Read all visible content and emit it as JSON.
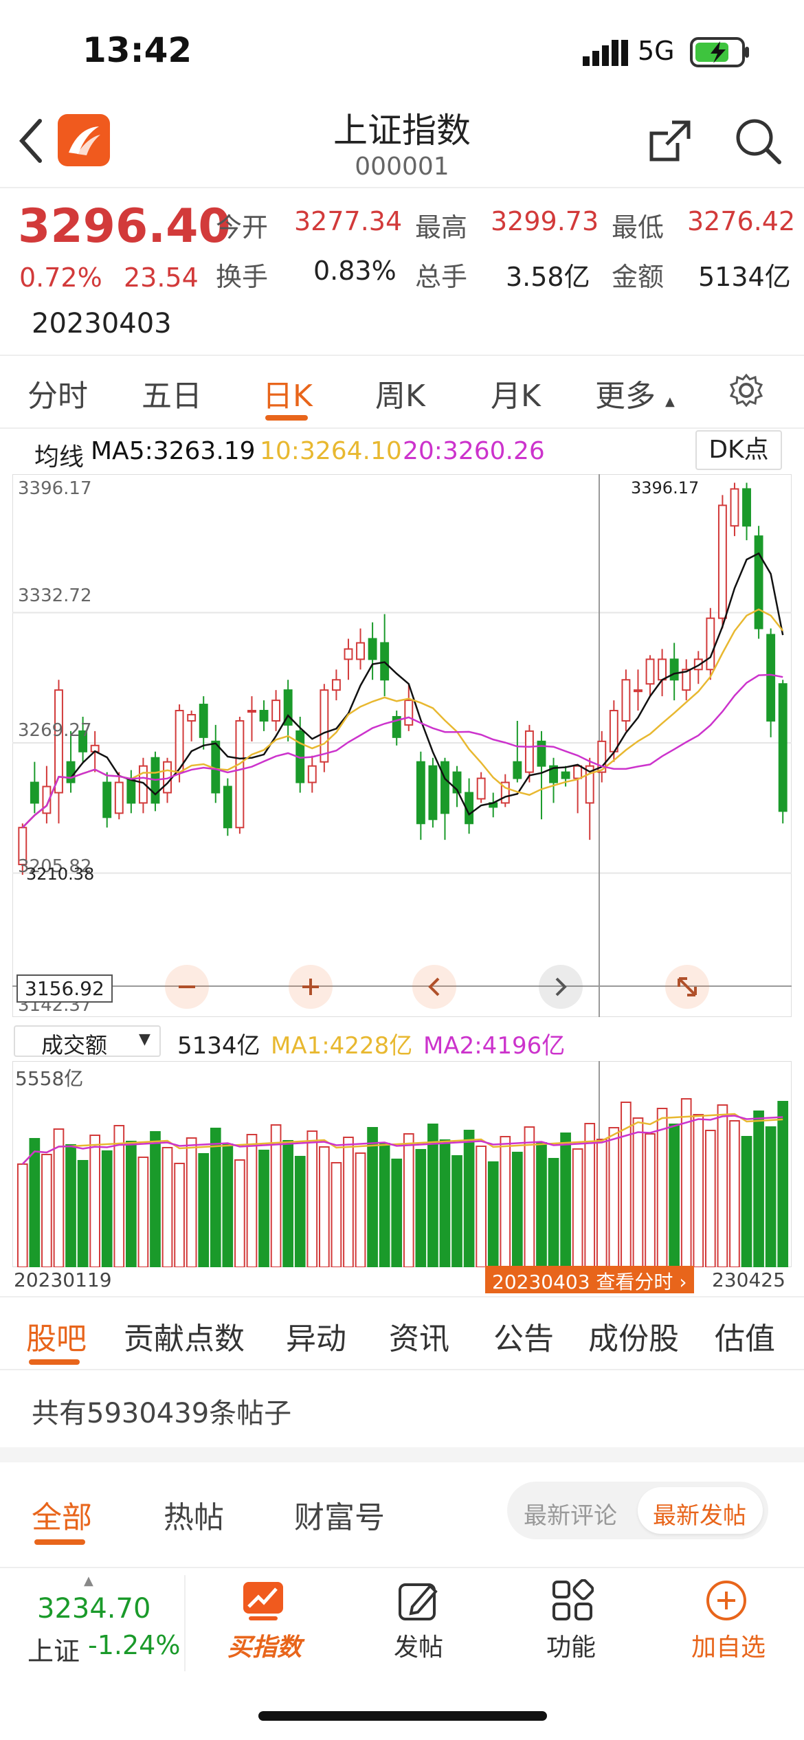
{
  "status": {
    "time": "13:42",
    "network": "5G"
  },
  "header": {
    "title": "上证指数",
    "code": "000001"
  },
  "quote": {
    "price": "3296.40",
    "change_pct": "0.72%",
    "change": "23.54",
    "date": "20230403",
    "open_label": "今开",
    "open": "3277.34",
    "high_label": "最高",
    "high": "3299.73",
    "low_label": "最低",
    "low": "3276.42",
    "turnover_label": "换手",
    "turnover": "0.83%",
    "volume_label": "总手",
    "volume": "3.58亿",
    "amount_label": "金额",
    "amount": "5134亿"
  },
  "period_tabs": [
    "分时",
    "五日",
    "日K",
    "周K",
    "月K",
    "更多"
  ],
  "active_period": "日K",
  "ma": {
    "label": "均线",
    "ma5": "MA5:3263.19",
    "ma10": "10:3264.10",
    "ma20": "20:3260.26",
    "dk_button": "DK点",
    "colors": {
      "ma5": "#111111",
      "ma10": "#e8b830",
      "ma20": "#cc33cc"
    }
  },
  "price_axis": {
    "top": "3396.17",
    "l2": "3332.72",
    "l3": "3269.27",
    "l4": "3205.82",
    "bottom": "3142.37",
    "crosshair_value": "3156.92",
    "max_marker": "3396.17",
    "min_marker": "3210.38"
  },
  "volume": {
    "selector": "成交额",
    "value": "5134亿",
    "ma1": "MA1:4228亿",
    "ma2": "MA2:4196亿",
    "top_label": "5558亿",
    "start_date": "20230119",
    "end_date": "230425",
    "crosshair_label": "20230403 查看分时"
  },
  "chart_data": {
    "type": "candlestick",
    "ylim": [
      3142.37,
      3396.17
    ],
    "candles": [
      [
        3210,
        3228,
        3205,
        3230
      ],
      [
        3250,
        3240,
        3235,
        3260
      ],
      [
        3235,
        3248,
        3230,
        3258
      ],
      [
        3245,
        3295,
        3230,
        3300
      ],
      [
        3260,
        3250,
        3245,
        3275
      ],
      [
        3275,
        3265,
        3260,
        3282
      ],
      [
        3265,
        3268,
        3255,
        3275
      ],
      [
        3250,
        3233,
        3228,
        3255
      ],
      [
        3235,
        3250,
        3232,
        3255
      ],
      [
        3252,
        3240,
        3235,
        3256
      ],
      [
        3240,
        3258,
        3235,
        3262
      ],
      [
        3262,
        3240,
        3236,
        3265
      ],
      [
        3245,
        3260,
        3240,
        3262
      ],
      [
        3255,
        3285,
        3250,
        3288
      ],
      [
        3280,
        3283,
        3270,
        3285
      ],
      [
        3288,
        3272,
        3266,
        3292
      ],
      [
        3270,
        3245,
        3240,
        3278
      ],
      [
        3248,
        3228,
        3224,
        3252
      ],
      [
        3228,
        3280,
        3225,
        3282
      ],
      [
        3285,
        3285,
        3270,
        3292
      ],
      [
        3285,
        3280,
        3275,
        3290
      ],
      [
        3280,
        3290,
        3275,
        3295
      ],
      [
        3295,
        3278,
        3270,
        3300
      ],
      [
        3275,
        3250,
        3245,
        3282
      ],
      [
        3250,
        3258,
        3245,
        3263
      ],
      [
        3260,
        3295,
        3255,
        3298
      ],
      [
        3295,
        3300,
        3290,
        3305
      ],
      [
        3310,
        3315,
        3300,
        3320
      ],
      [
        3310,
        3318,
        3305,
        3325
      ],
      [
        3320,
        3310,
        3300,
        3328
      ],
      [
        3318,
        3300,
        3292,
        3332
      ],
      [
        3282,
        3272,
        3268,
        3285
      ],
      [
        3278,
        3290,
        3275,
        3298
      ],
      [
        3260,
        3230,
        3222,
        3265
      ],
      [
        3258,
        3232,
        3228,
        3262
      ],
      [
        3260,
        3235,
        3222,
        3262
      ],
      [
        3255,
        3245,
        3238,
        3258
      ],
      [
        3245,
        3230,
        3225,
        3252
      ],
      [
        3242,
        3252,
        3240,
        3255
      ],
      [
        3240,
        3238,
        3233,
        3245
      ],
      [
        3240,
        3250,
        3238,
        3254
      ],
      [
        3260,
        3252,
        3250,
        3280
      ],
      [
        3255,
        3275,
        3250,
        3278
      ],
      [
        3270,
        3258,
        3232,
        3275
      ],
      [
        3258,
        3250,
        3240,
        3262
      ],
      [
        3255,
        3252,
        3248,
        3258
      ],
      [
        3252,
        3258,
        3235,
        3258
      ],
      [
        3240,
        3258,
        3222,
        3262
      ],
      [
        3255,
        3270,
        3250,
        3275
      ],
      [
        3265,
        3285,
        3260,
        3290
      ],
      [
        3280,
        3300,
        3275,
        3305
      ],
      [
        3295,
        3295,
        3285,
        3305
      ],
      [
        3298,
        3310,
        3292,
        3312
      ],
      [
        3300,
        3310,
        3292,
        3315
      ],
      [
        3310,
        3300,
        3290,
        3318
      ],
      [
        3295,
        3305,
        3290,
        3310
      ],
      [
        3305,
        3310,
        3298,
        3314
      ],
      [
        3305,
        3330,
        3300,
        3335
      ],
      [
        3330,
        3385,
        3325,
        3390
      ],
      [
        3375,
        3393,
        3370,
        3396
      ],
      [
        3393,
        3375,
        3368,
        3396
      ],
      [
        3370,
        3325,
        3320,
        3375
      ],
      [
        3322,
        3280,
        3272,
        3325
      ],
      [
        3298,
        3236,
        3230,
        3300
      ]
    ],
    "volume_max": 5558
  },
  "bottom_tabs": [
    "股吧",
    "贡献点数",
    "异动",
    "资讯",
    "公告",
    "成份股",
    "估值"
  ],
  "posts": {
    "count_text": "共有5930439条帖子"
  },
  "sub_tabs": [
    "全部",
    "热帖",
    "财富号"
  ],
  "sort": {
    "latest_comment": "最新评论",
    "latest_post": "最新发帖"
  },
  "footer": {
    "index_value": "3234.70",
    "index_name": "上证",
    "index_change": "-1.24%",
    "buy_index": "买指数",
    "post": "发帖",
    "function": "功能",
    "add_favorite": "加自选"
  }
}
